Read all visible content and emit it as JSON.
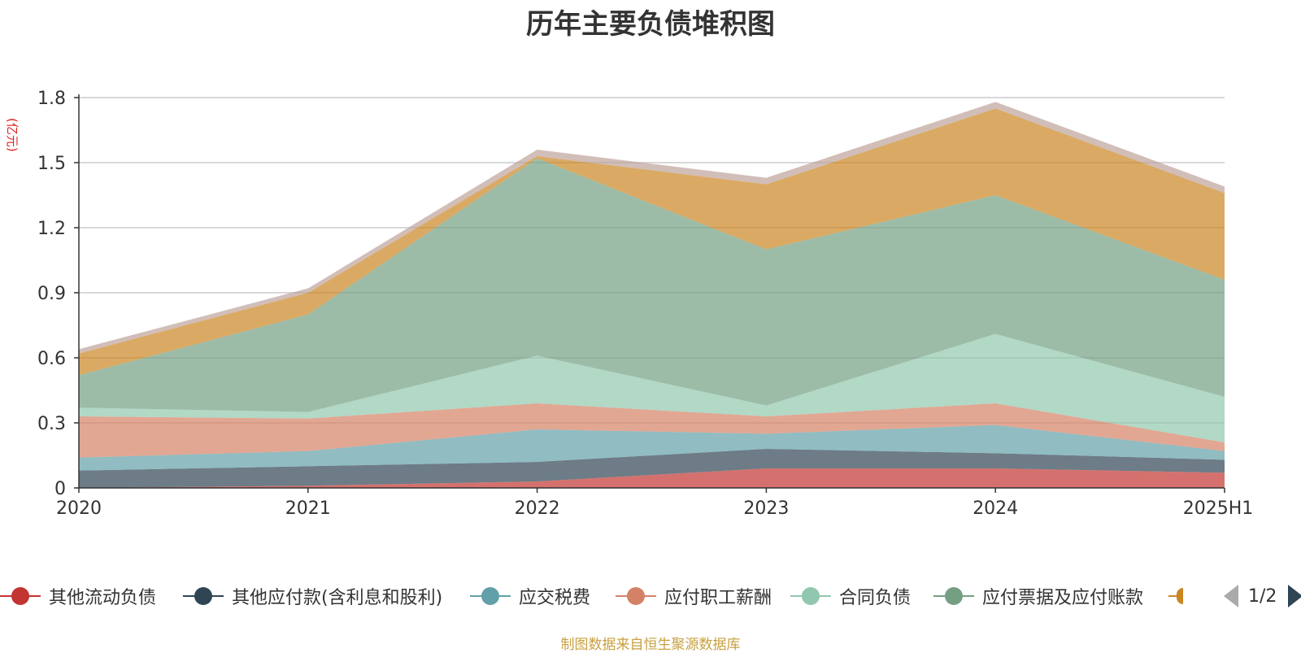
{
  "chart_data": {
    "type": "area",
    "stacked": true,
    "title": "历年主要负债堆积图",
    "unit_label": "(亿元)",
    "x": [
      "2020",
      "2021",
      "2022",
      "2023",
      "2024",
      "2025H1"
    ],
    "y_ticks": [
      "0",
      "0.3",
      "0.6",
      "0.9",
      "1.2",
      "1.5",
      "1.8"
    ],
    "ylim": [
      0,
      1.8
    ],
    "grid": true,
    "legend_position": "bottom",
    "series": [
      {
        "name": "其他流动负债",
        "color": "#c23531",
        "values": [
          0.0,
          0.01,
          0.03,
          0.09,
          0.09,
          0.07
        ]
      },
      {
        "name": "其他应付款(含利息和股利)",
        "color": "#2f4554",
        "values": [
          0.08,
          0.09,
          0.09,
          0.09,
          0.07,
          0.06
        ]
      },
      {
        "name": "应交税费",
        "color": "#61a0a8",
        "values": [
          0.06,
          0.07,
          0.15,
          0.07,
          0.13,
          0.04
        ]
      },
      {
        "name": "应付职工薪酬",
        "color": "#d48265",
        "values": [
          0.19,
          0.15,
          0.12,
          0.08,
          0.1,
          0.04
        ]
      },
      {
        "name": "合同负债",
        "color": "#91c7ae",
        "values": [
          0.04,
          0.03,
          0.22,
          0.05,
          0.32,
          0.21
        ]
      },
      {
        "name": "应付票据及应付账款",
        "color": "#749f83",
        "values": [
          0.15,
          0.45,
          0.91,
          0.72,
          0.64,
          0.54
        ]
      },
      {
        "name": "",
        "color": "#ca8622",
        "values": [
          0.1,
          0.1,
          0.01,
          0.3,
          0.4,
          0.4
        ]
      },
      {
        "name": "",
        "color": "#bda29a",
        "values": [
          0.02,
          0.02,
          0.03,
          0.03,
          0.03,
          0.03
        ]
      }
    ]
  },
  "legend": {
    "page": "1/2"
  },
  "source_note": "制图数据来自恒生聚源数据库"
}
